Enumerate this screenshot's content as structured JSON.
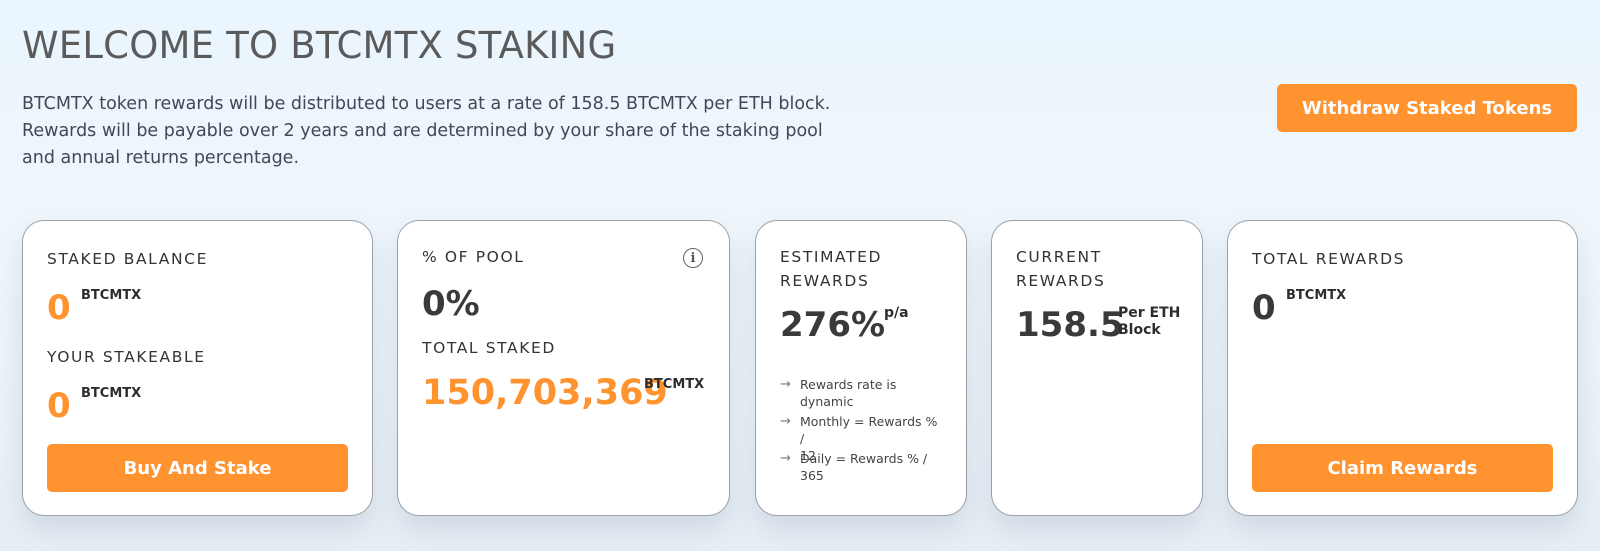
{
  "header": {
    "title": "WELCOME TO BTCMTX STAKING",
    "description_lines": [
      "BTCMTX token rewards will be distributed to users at a rate of 158.5 BTCMTX per ETH block.",
      "Rewards will be payable over 2 years and are determined by your share of the staking pool",
      "and annual returns percentage."
    ],
    "withdraw_label": "Withdraw Staked Tokens"
  },
  "cards": {
    "staked": {
      "label": "STAKED BALANCE",
      "value": "0",
      "unit": "BTCMTX",
      "stakeable_label": "YOUR STAKEABLE",
      "stakeable_value": "0",
      "stakeable_unit": "BTCMTX",
      "button_label": "Buy And Stake"
    },
    "pool": {
      "label": "% OF POOL",
      "value": "0%",
      "info_icon": "i",
      "total_label": "TOTAL STAKED",
      "total_value": "150,703,369",
      "total_unit": "BTCMTX"
    },
    "estimated": {
      "label_line1": "ESTIMATED",
      "label_line2": "REWARDS",
      "value": "276%",
      "unit": "p/a",
      "arrow_icon": "→",
      "notes": [
        [
          "Rewards rate is",
          "dynamic"
        ],
        [
          "Monthly = Rewards % /",
          "12"
        ],
        [
          "Daily = Rewards % /",
          "365"
        ]
      ]
    },
    "current": {
      "label_line1": "CURRENT",
      "label_line2": "REWARDS",
      "value": "158.5",
      "unit_line1": "Per ETH",
      "unit_line2": "Block"
    },
    "total": {
      "label": "TOTAL REWARDS",
      "value": "0",
      "unit": "BTCMTX",
      "button_label": "Claim Rewards"
    }
  },
  "colors": {
    "accent": "#ff932f",
    "card_border": "#9aa1a8"
  }
}
